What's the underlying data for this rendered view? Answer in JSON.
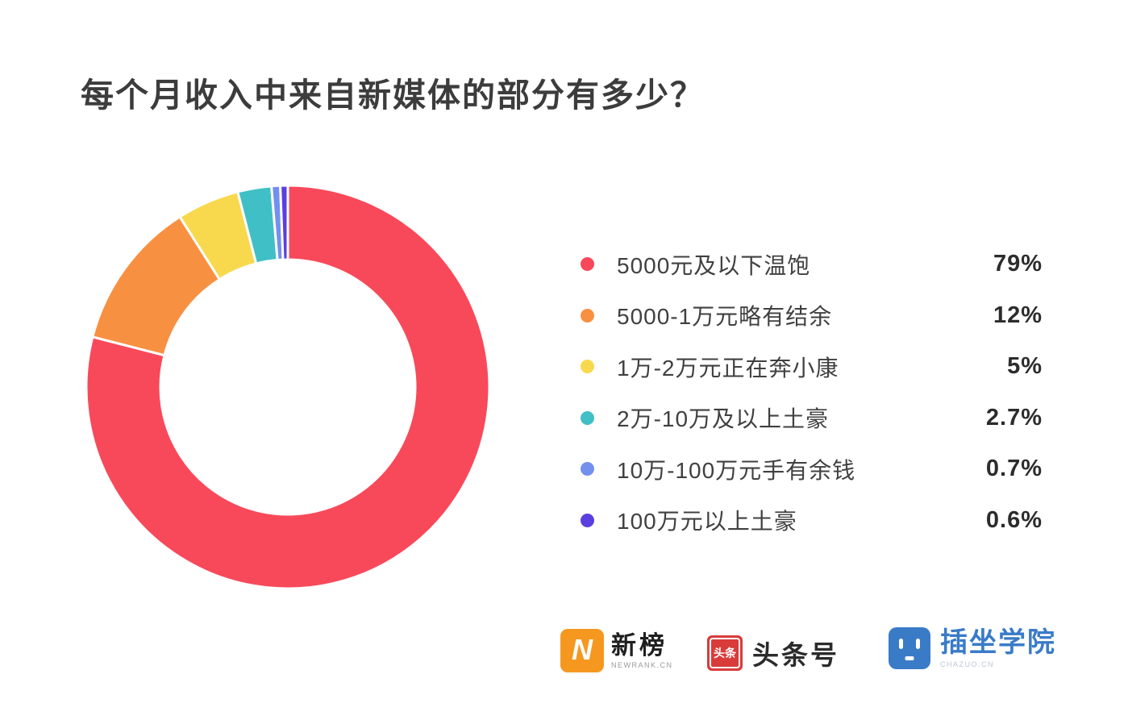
{
  "title": "每个月收入中来自新媒体的部分有多少？",
  "chart_data": {
    "type": "pie",
    "variant": "donut",
    "title": "每个月收入中来自新媒体的部分有多少？",
    "start_angle_deg": 0,
    "direction": "clockwise",
    "legend_position": "right",
    "donut": {
      "outer_radius": 250,
      "inner_radius": 158,
      "gap_stroke_color": "#ffffff"
    },
    "segments": [
      {
        "label": "5000元及以下温饱",
        "value_pct": 79,
        "display": "79%",
        "color": "#f8495a"
      },
      {
        "label": "5000-1万元略有结余",
        "value_pct": 12,
        "display": "12%",
        "color": "#f89042"
      },
      {
        "label": "1万-2万元正在奔小康",
        "value_pct": 5,
        "display": "5%",
        "color": "#f8d94e"
      },
      {
        "label": "2万-10万及以上土豪",
        "value_pct": 2.7,
        "display": "2.7%",
        "color": "#40bfc6"
      },
      {
        "label": "10万-100万元手有余钱",
        "value_pct": 0.7,
        "display": "0.7%",
        "color": "#7390ec"
      },
      {
        "label": "100万元以上土豪",
        "value_pct": 0.6,
        "display": "0.6%",
        "color": "#5b3fe0"
      }
    ]
  },
  "footer": {
    "newrank": {
      "badge_letter": "N",
      "badge_color": "#f6981f",
      "name": "新榜",
      "subtext": "NEWRANK.CN"
    },
    "toutiao": {
      "badge_text": "头条",
      "badge_color": "#d93b3b",
      "name": "头条号"
    },
    "chazuo": {
      "badge_color": "#3a7bc8",
      "name": "插坐学院",
      "name_color": "#3a7bc8",
      "subtext": "CHAZUO.CN"
    }
  }
}
